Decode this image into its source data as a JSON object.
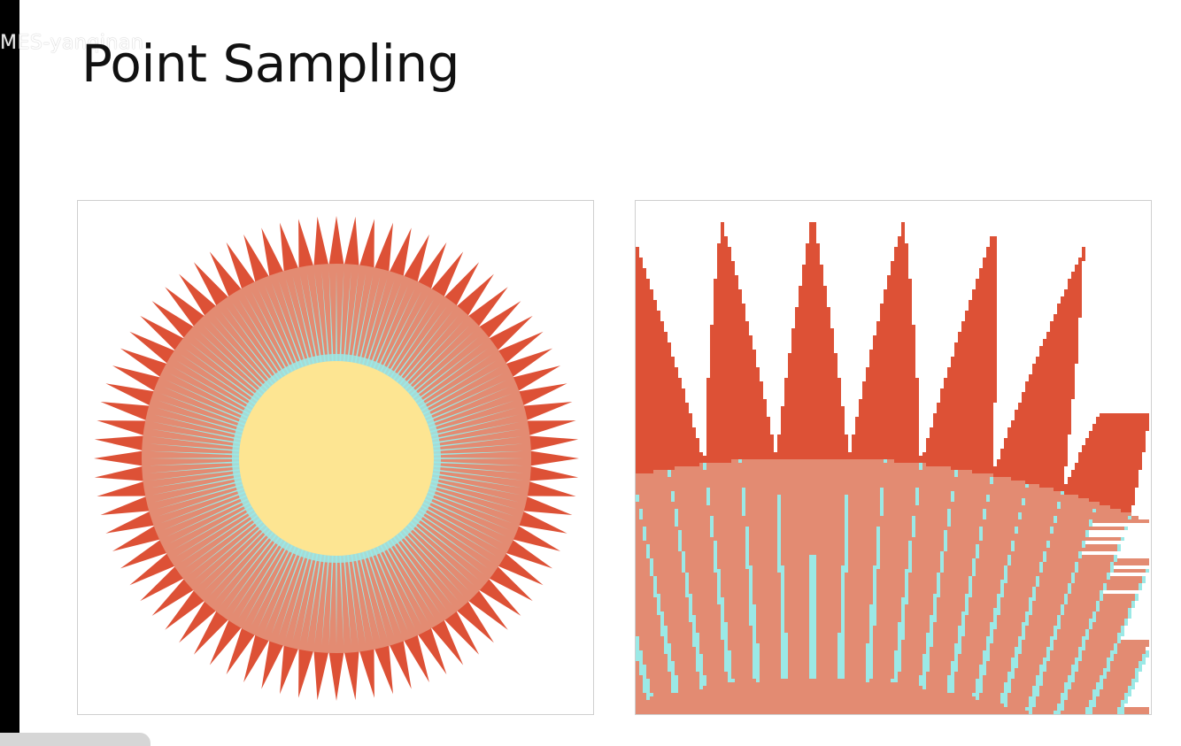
{
  "slide": {
    "title": "Point Sampling",
    "watermark": "MES-yanqinan"
  },
  "colors": {
    "spike": "#dd5136",
    "ring": "#e38b72",
    "cyan": "#9be9e6",
    "core": "#fde592",
    "panel_border": "#cfcfcf"
  },
  "figures": {
    "left": {
      "description_icon": "sun-starburst-figure",
      "spike_count": 80
    },
    "right": {
      "description_icon": "zoomed-aliased-starburst-figure"
    }
  }
}
